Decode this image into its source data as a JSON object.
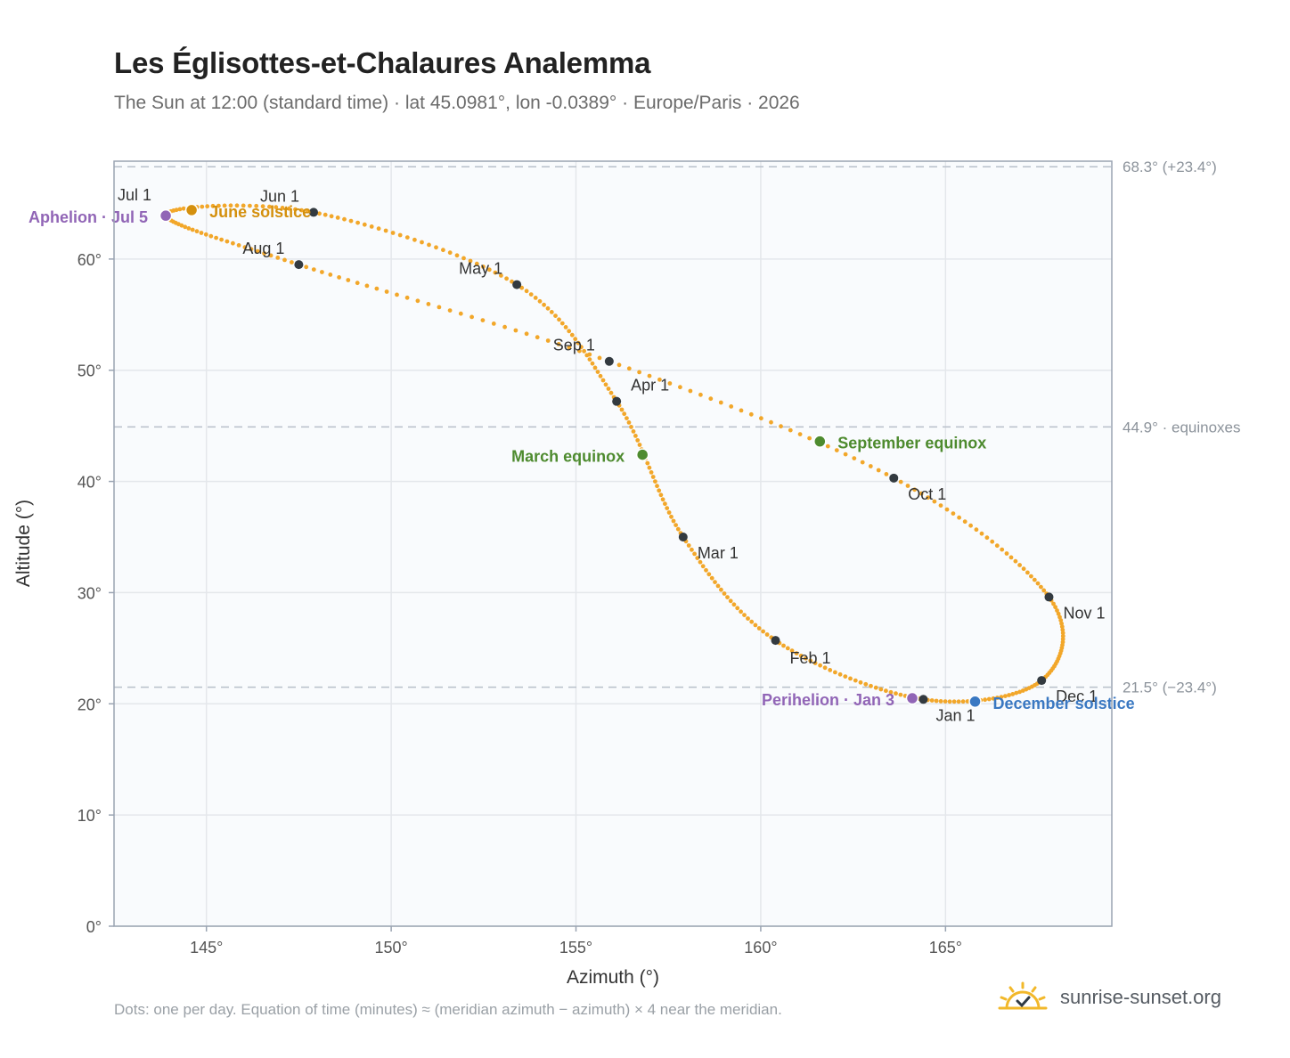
{
  "title": "Les Églisottes-et-Chalaures Analemma",
  "subtitle": "The Sun at 12:00 (standard time) · lat 45.0981°, lon -0.0389° · Europe/Paris · 2026",
  "footnote": "Dots: one per day. Equation of time (minutes) ≈ (meridian azimuth − azimuth) × 4 near the meridian.",
  "brand": {
    "name": "sunrise-sunset.org",
    "icon": "sun-logo-icon"
  },
  "colors": {
    "path": "#f2a72a",
    "month_marker": "#333a40",
    "solstice_june": "#d4900e",
    "solstice_december": "#3a78c2",
    "equinox": "#4e8b2f",
    "apsis": "#9165b6",
    "reference_line": "#b8c0ca",
    "plot_bg": "#f9fbfd",
    "grid": "#e4e7eb",
    "frame": "#9aa4b2"
  },
  "chart_data": {
    "type": "scatter",
    "xlabel": "Azimuth (°)",
    "ylabel": "Altitude (°)",
    "xlim": [
      142.5,
      169.5
    ],
    "ylim": [
      0,
      68.8
    ],
    "x_ticks": [
      145,
      150,
      155,
      160,
      165
    ],
    "x_tick_labels": [
      "145°",
      "150°",
      "155°",
      "160°",
      "165°"
    ],
    "y_ticks": [
      0,
      10,
      20,
      30,
      40,
      50,
      60
    ],
    "y_tick_labels": [
      "0°",
      "10°",
      "20°",
      "30°",
      "40°",
      "50°",
      "60°"
    ],
    "grid": true,
    "reference_lines": [
      {
        "altitude": 68.3,
        "label": "68.3° (+23.4°)"
      },
      {
        "altitude": 44.9,
        "label": "44.9° · equinoxes"
      },
      {
        "altitude": 21.5,
        "label": "21.5° (−23.4°)"
      }
    ],
    "series": [
      {
        "dots": "one per day",
        "points": [
          [
            164.4,
            20.4
          ],
          [
            160.4,
            25.7
          ],
          [
            157.9,
            35.0
          ],
          [
            156.1,
            47.2
          ],
          [
            153.4,
            57.7
          ],
          [
            147.9,
            64.2
          ],
          [
            143.9,
            64.0
          ],
          [
            147.5,
            59.5
          ],
          [
            155.9,
            50.8
          ],
          [
            163.6,
            40.3
          ],
          [
            167.8,
            29.6
          ],
          [
            167.6,
            22.1
          ],
          [
            164.4,
            20.4
          ]
        ]
      }
    ],
    "month_markers": [
      {
        "label": "Jan 1",
        "azimuth": 164.4,
        "altitude": 20.4
      },
      {
        "label": "Feb 1",
        "azimuth": 160.4,
        "altitude": 25.7
      },
      {
        "label": "Mar 1",
        "azimuth": 157.9,
        "altitude": 35.0
      },
      {
        "label": "Apr 1",
        "azimuth": 156.1,
        "altitude": 47.2
      },
      {
        "label": "May 1",
        "azimuth": 153.4,
        "altitude": 57.7
      },
      {
        "label": "Jun 1",
        "azimuth": 147.9,
        "altitude": 64.2
      },
      {
        "label": "Jul 1",
        "azimuth": 143.9,
        "altitude": 64.0
      },
      {
        "label": "Aug 1",
        "azimuth": 147.5,
        "altitude": 59.5
      },
      {
        "label": "Sep 1",
        "azimuth": 155.9,
        "altitude": 50.8
      },
      {
        "label": "Oct 1",
        "azimuth": 163.6,
        "altitude": 40.3
      },
      {
        "label": "Nov 1",
        "azimuth": 167.8,
        "altitude": 29.6
      },
      {
        "label": "Dec 1",
        "azimuth": 167.6,
        "altitude": 22.1
      }
    ],
    "events": [
      {
        "label": "June solstice",
        "azimuth": 144.6,
        "altitude": 64.4,
        "kind": "solstice_june"
      },
      {
        "label": "December solstice",
        "azimuth": 165.8,
        "altitude": 20.2,
        "kind": "solstice_december"
      },
      {
        "label": "March equinox",
        "azimuth": 156.8,
        "altitude": 42.4,
        "kind": "equinox"
      },
      {
        "label": "September equinox",
        "azimuth": 161.6,
        "altitude": 43.6,
        "kind": "equinox"
      },
      {
        "label": "Aphelion · Jul 5",
        "azimuth": 143.9,
        "altitude": 63.9,
        "kind": "apsis"
      },
      {
        "label": "Perihelion · Jan 3",
        "azimuth": 164.1,
        "altitude": 20.5,
        "kind": "apsis"
      }
    ]
  }
}
